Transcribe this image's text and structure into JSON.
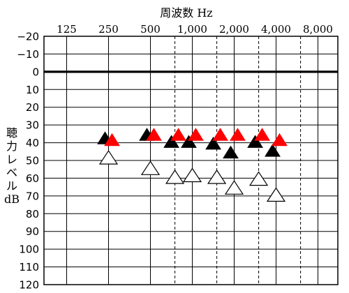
{
  "chart_data": {
    "type": "scatter",
    "title": "周波数 Hz",
    "ylabel": "聴力レベル dB",
    "ylabel_lines": [
      "聴",
      "力",
      "レ",
      "ベ",
      "ル",
      "dB"
    ],
    "x_tick_labels": [
      "125",
      "250",
      "500",
      "1,000",
      "2,000",
      "4,000",
      "8,000"
    ],
    "x_tick_freqs": [
      125,
      250,
      500,
      1000,
      2000,
      4000,
      8000
    ],
    "x_minor_freqs": [
      750,
      1500,
      3000,
      6000
    ],
    "y_tick_labels": [
      "−20",
      "−10",
      "0",
      "10",
      "20",
      "30",
      "40",
      "50",
      "60",
      "70",
      "80",
      "90",
      "100",
      "110",
      "120"
    ],
    "ylim": [
      -20,
      120
    ],
    "y_inverted": true,
    "x_scale": "log",
    "grid": true,
    "reference_line_y": 0,
    "series": [
      {
        "color": "#000000",
        "marker": "filled-triangle",
        "points": [
          [
            250,
            38
          ],
          [
            500,
            36
          ],
          [
            750,
            40
          ],
          [
            1000,
            40
          ],
          [
            1500,
            41
          ],
          [
            2000,
            46
          ],
          [
            3000,
            40
          ],
          [
            4000,
            45
          ]
        ]
      },
      {
        "color": "#ff0000",
        "marker": "filled-triangle",
        "points": [
          [
            250,
            39
          ],
          [
            500,
            36
          ],
          [
            750,
            36
          ],
          [
            1000,
            36
          ],
          [
            1500,
            36
          ],
          [
            2000,
            36
          ],
          [
            3000,
            36
          ],
          [
            4000,
            39
          ]
        ]
      },
      {
        "color": "#ffffff",
        "marker": "open-triangle",
        "points": [
          [
            250,
            49
          ],
          [
            500,
            55
          ],
          [
            750,
            60
          ],
          [
            1000,
            59
          ],
          [
            1500,
            60
          ],
          [
            2000,
            66
          ],
          [
            3000,
            61
          ],
          [
            4000,
            70
          ]
        ]
      }
    ]
  }
}
